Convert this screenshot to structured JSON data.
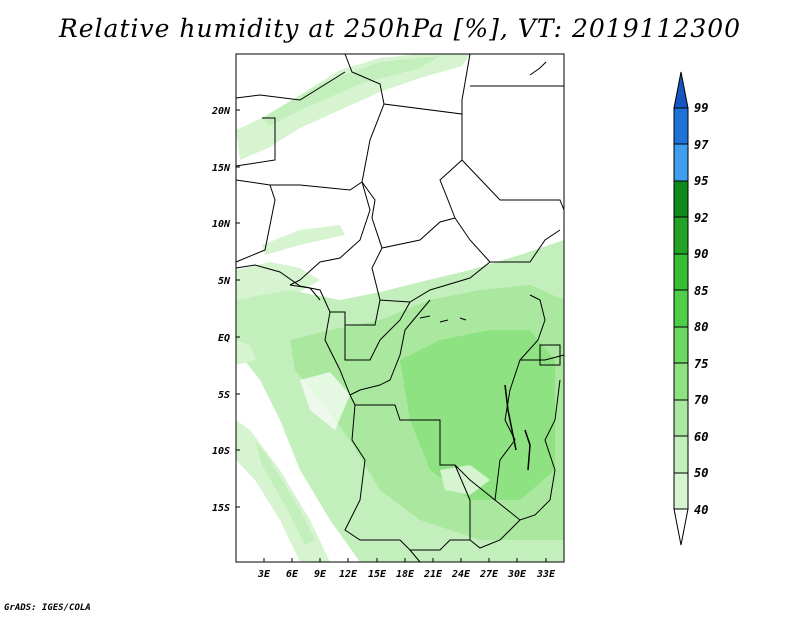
{
  "title": "Relative humidity at 250hPa [%], VT: 2019112300",
  "footer": "GrADS: IGES/COLA",
  "map": {
    "lat_labels": [
      "20N",
      "15N",
      "10N",
      "5N",
      "EQ",
      "5S",
      "10S",
      "15S"
    ],
    "lat_values": [
      20,
      15,
      10,
      5,
      0,
      -5,
      -10,
      -15
    ],
    "lon_labels": [
      "3E",
      "6E",
      "9E",
      "12E",
      "15E",
      "18E",
      "21E",
      "24E",
      "27E",
      "30E",
      "33E"
    ],
    "lon_values": [
      3,
      6,
      9,
      12,
      15,
      18,
      21,
      24,
      27,
      30,
      33
    ],
    "lon_range": [
      0,
      35
    ],
    "lat_range": [
      -20,
      25
    ]
  },
  "colorbar": {
    "labels": [
      "99",
      "97",
      "95",
      "92",
      "90",
      "85",
      "80",
      "75",
      "70",
      "60",
      "50",
      "40"
    ],
    "levels": [
      40,
      50,
      60,
      70,
      75,
      80,
      85,
      90,
      92,
      95,
      97,
      99
    ],
    "colors": [
      "#eefaeb",
      "#d5f4cf",
      "#c2efbb",
      "#a9e89e",
      "#8fe282",
      "#6dd962",
      "#4fcf48",
      "#37bd34",
      "#22a326",
      "#0f8a1a",
      "#3f9eee",
      "#1f72d8",
      "#1656c0"
    ]
  }
}
